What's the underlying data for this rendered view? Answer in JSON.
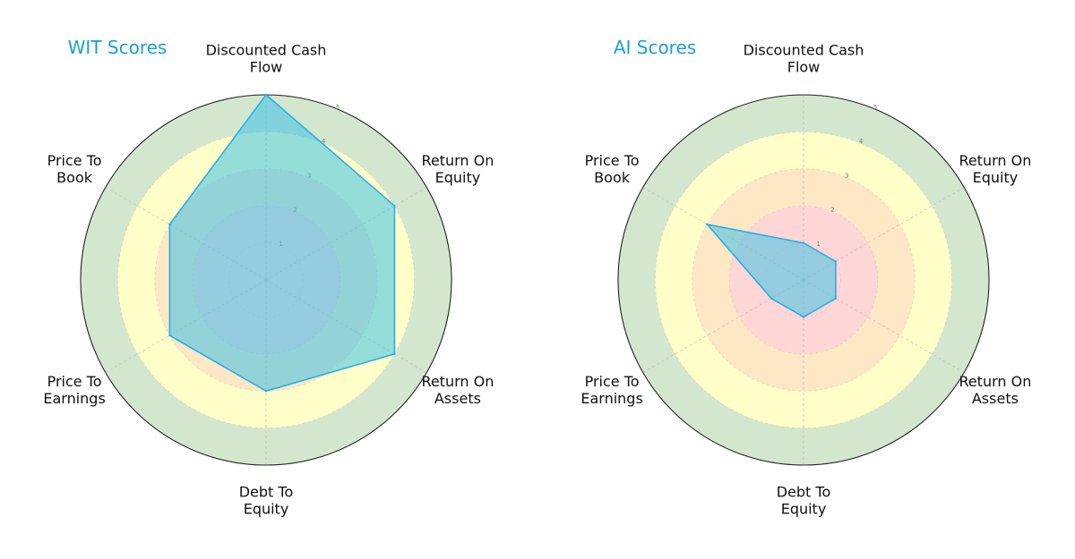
{
  "chart_data": [
    {
      "type": "radar",
      "title": "WIT Scores",
      "axes": [
        [
          "Discounted Cash",
          "Flow"
        ],
        [
          "Return On",
          "Equity"
        ],
        [
          "Return On",
          "Assets"
        ],
        [
          "Debt To",
          "Equity"
        ],
        [
          "Price To",
          "Earnings"
        ],
        [
          "Price To",
          "Book"
        ]
      ],
      "values": [
        5,
        4,
        4,
        3,
        3,
        3
      ],
      "rlim": [
        0,
        5
      ],
      "ticks": [
        1,
        2,
        3,
        4,
        5
      ],
      "bands": [
        {
          "from": 0,
          "to": 1,
          "color": "#ffd6d6"
        },
        {
          "from": 1,
          "to": 2,
          "color": "#ffd6d6"
        },
        {
          "from": 2,
          "to": 3,
          "color": "#fde7c5"
        },
        {
          "from": 3,
          "to": 4,
          "color": "#fffdc8"
        },
        {
          "from": 4,
          "to": 5,
          "color": "#d3e7cf"
        }
      ],
      "fill_color": "#3cc3e8",
      "line_color": "#29aee8"
    },
    {
      "type": "radar",
      "title": "AI Scores",
      "axes": [
        [
          "Discounted Cash",
          "Flow"
        ],
        [
          "Return On",
          "Equity"
        ],
        [
          "Return On",
          "Assets"
        ],
        [
          "Debt To",
          "Equity"
        ],
        [
          "Price To",
          "Earnings"
        ],
        [
          "Price To",
          "Book"
        ]
      ],
      "values": [
        1,
        1,
        1,
        1,
        1,
        3
      ],
      "rlim": [
        0,
        5
      ],
      "ticks": [
        1,
        2,
        3,
        4,
        5
      ],
      "bands": [
        {
          "from": 0,
          "to": 1,
          "color": "#ffd6d6"
        },
        {
          "from": 1,
          "to": 2,
          "color": "#ffd6d6"
        },
        {
          "from": 2,
          "to": 3,
          "color": "#fde7c5"
        },
        {
          "from": 3,
          "to": 4,
          "color": "#fffdc8"
        },
        {
          "from": 4,
          "to": 5,
          "color": "#d3e7cf"
        }
      ],
      "fill_color": "#3cc3e8",
      "line_color": "#29aee8"
    }
  ],
  "colors": {
    "title": "#1a9fd6",
    "grid": "#bbbbbb",
    "outer_ring": "#222222"
  }
}
